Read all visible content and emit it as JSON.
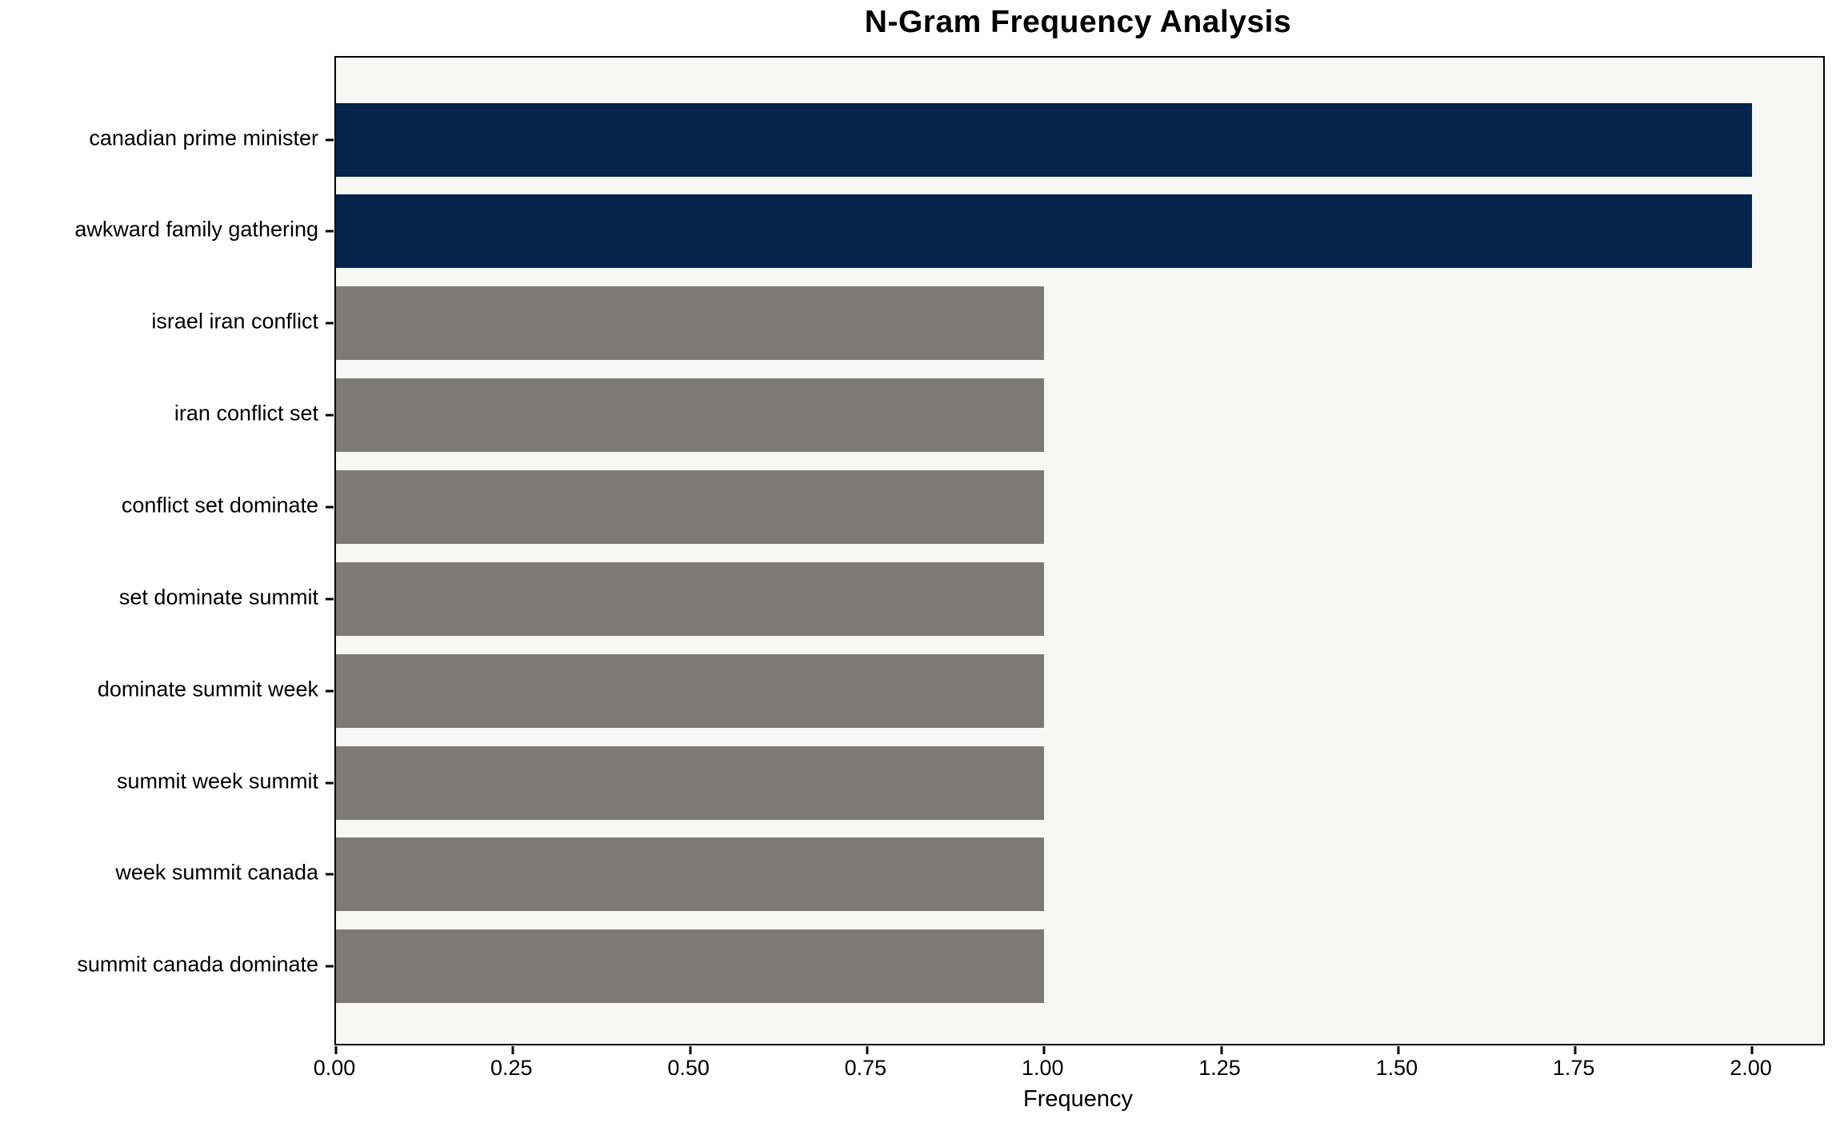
{
  "chart_data": {
    "type": "bar",
    "orientation": "horizontal",
    "title": "N-Gram Frequency Analysis",
    "xlabel": "Frequency",
    "ylabel": "",
    "categories": [
      "canadian prime minister",
      "awkward family gathering",
      "israel iran conflict",
      "iran conflict set",
      "conflict set dominate",
      "set dominate summit",
      "dominate summit week",
      "summit week summit",
      "week summit canada",
      "summit canada dominate"
    ],
    "values": [
      2,
      2,
      1,
      1,
      1,
      1,
      1,
      1,
      1,
      1
    ],
    "bar_colors": [
      "#05244b",
      "#05244b",
      "#7b7a76",
      "#7b7a76",
      "#7b7a76",
      "#7b7a76",
      "#7b7a76",
      "#7b7a76",
      "#7b7a76",
      "#7b7a76"
    ],
    "xlim": [
      0,
      2.1
    ],
    "x_ticks": [
      0.0,
      0.25,
      0.5,
      0.75,
      1.0,
      1.25,
      1.5,
      1.75,
      2.0
    ],
    "x_tick_labels": [
      "0.00",
      "0.25",
      "0.50",
      "0.75",
      "1.00",
      "1.25",
      "1.50",
      "1.75",
      "2.00"
    ],
    "grid": "off",
    "legend": "none"
  },
  "style": {
    "highlight_color": "#05244b",
    "default_bar_color": "#7b7a76",
    "plot_background": "#f7f7f5",
    "figure_background": "#ffffff",
    "axis_color": "#000000",
    "text_color": "#000000"
  }
}
